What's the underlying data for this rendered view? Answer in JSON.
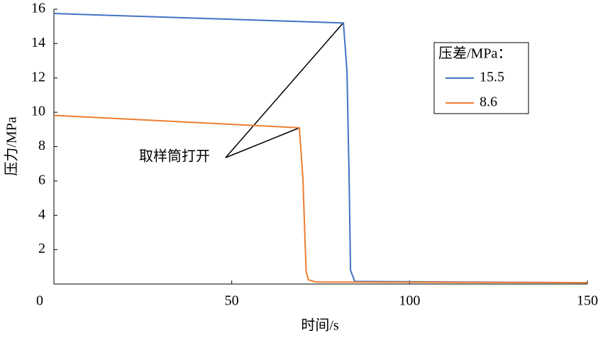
{
  "chart_data": {
    "type": "line",
    "xlabel": "时间/s",
    "ylabel": "压力/MPa",
    "xlim": [
      0,
      150
    ],
    "ylim": [
      0,
      16
    ],
    "xticks": [
      0,
      50,
      100,
      150
    ],
    "yticks": [
      2,
      4,
      6,
      8,
      10,
      12,
      14,
      16
    ],
    "legend": "upper right",
    "legend_title": "压差/MPa：",
    "annotation": "取样筒打开",
    "series": [
      {
        "name": "15.5",
        "color": "#4472c4",
        "x": [
          0,
          81.4,
          82.4,
          83,
          83.4,
          84.6,
          150
        ],
        "values": [
          15.75,
          15.2,
          12.4,
          6.2,
          0.8,
          0.15,
          0.08
        ]
      },
      {
        "name": "8.6",
        "color": "#ed7d31",
        "x": [
          0,
          69,
          70,
          70.9,
          71.5,
          73.6,
          150
        ],
        "values": [
          9.82,
          9.1,
          6.2,
          0.8,
          0.25,
          0.12,
          0.08
        ]
      }
    ]
  }
}
